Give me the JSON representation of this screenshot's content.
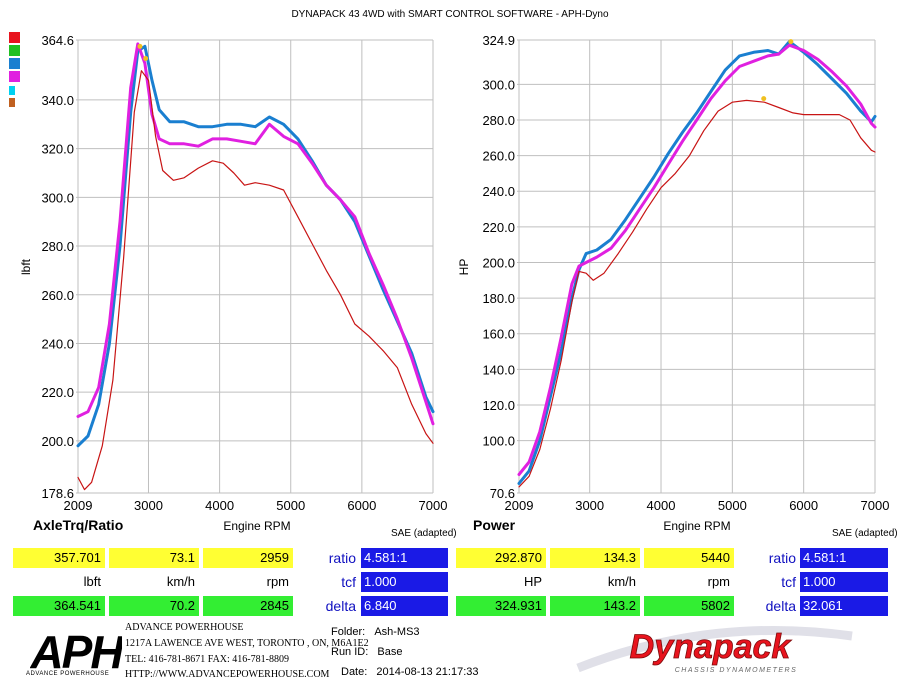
{
  "header": {
    "title": "DYNAPACK 43 4WD with SMART CONTROL SOFTWARE - APH-Dyno"
  },
  "legend_colors": [
    "#e8141e",
    "#20c020",
    "#1a7fd0",
    "#e020e0",
    "#00d0f0",
    "#c06020"
  ],
  "chart_data": [
    {
      "type": "line",
      "title": "AxleTrq/Ratio",
      "xlabel": "Engine RPM",
      "ylabel": "lbft",
      "system_label": "SAE (adapted)",
      "xlim": [
        2009,
        7000
      ],
      "ylim": [
        178.6,
        364.6
      ],
      "x_ticks": [
        "2009",
        "3000",
        "4000",
        "5000",
        "6000",
        "7000"
      ],
      "y_ticks": [
        "364.6",
        "340.0",
        "320.0",
        "300.0",
        "280.0",
        "260.0",
        "240.0",
        "220.0",
        "200.0",
        "178.6"
      ],
      "series": [
        {
          "color": "#1a7fd0",
          "points": [
            [
              2009,
              198
            ],
            [
              2150,
              202
            ],
            [
              2300,
              215
            ],
            [
              2450,
              240
            ],
            [
              2600,
              280
            ],
            [
              2750,
              335
            ],
            [
              2850,
              360
            ],
            [
              2950,
              362
            ],
            [
              3050,
              348
            ],
            [
              3150,
              336
            ],
            [
              3300,
              331
            ],
            [
              3500,
              331
            ],
            [
              3700,
              329
            ],
            [
              3900,
              329
            ],
            [
              4100,
              330
            ],
            [
              4300,
              330
            ],
            [
              4500,
              329
            ],
            [
              4700,
              333
            ],
            [
              4900,
              330
            ],
            [
              5100,
              324
            ],
            [
              5300,
              315
            ],
            [
              5500,
              305
            ],
            [
              5700,
              299
            ],
            [
              5900,
              290
            ],
            [
              6100,
              276
            ],
            [
              6300,
              262
            ],
            [
              6500,
              249
            ],
            [
              6700,
              236
            ],
            [
              6900,
              218
            ],
            [
              7000,
              212
            ]
          ]
        },
        {
          "color": "#e020e0",
          "points": [
            [
              2009,
              210
            ],
            [
              2150,
              212
            ],
            [
              2300,
              222
            ],
            [
              2450,
              248
            ],
            [
              2600,
              290
            ],
            [
              2750,
              345
            ],
            [
              2850,
              363
            ],
            [
              2950,
              355
            ],
            [
              3050,
              334
            ],
            [
              3150,
              324
            ],
            [
              3300,
              322
            ],
            [
              3500,
              322
            ],
            [
              3700,
              321
            ],
            [
              3900,
              324
            ],
            [
              4100,
              324
            ],
            [
              4300,
              323
            ],
            [
              4500,
              322
            ],
            [
              4700,
              330
            ],
            [
              4900,
              325
            ],
            [
              5100,
              322
            ],
            [
              5300,
              314
            ],
            [
              5500,
              305
            ],
            [
              5700,
              299
            ],
            [
              5900,
              292
            ],
            [
              6100,
              277
            ],
            [
              6300,
              264
            ],
            [
              6500,
              250
            ],
            [
              6700,
              234
            ],
            [
              6900,
              216
            ],
            [
              7000,
              207
            ]
          ]
        },
        {
          "color": "#c81414",
          "points": [
            [
              2009,
              185
            ],
            [
              2100,
              180
            ],
            [
              2200,
              183
            ],
            [
              2350,
              198
            ],
            [
              2500,
              225
            ],
            [
              2650,
              275
            ],
            [
              2800,
              335
            ],
            [
              2900,
              352
            ],
            [
              3000,
              348
            ],
            [
              3100,
              325
            ],
            [
              3200,
              311
            ],
            [
              3350,
              307
            ],
            [
              3500,
              308
            ],
            [
              3700,
              312
            ],
            [
              3900,
              315
            ],
            [
              4050,
              314
            ],
            [
              4200,
              310
            ],
            [
              4350,
              305
            ],
            [
              4500,
              306
            ],
            [
              4700,
              305
            ],
            [
              4900,
              303
            ],
            [
              5100,
              292
            ],
            [
              5300,
              281
            ],
            [
              5500,
              270
            ],
            [
              5700,
              260
            ],
            [
              5900,
              248
            ],
            [
              6100,
              243
            ],
            [
              6300,
              237
            ],
            [
              6500,
              230
            ],
            [
              6700,
              215
            ],
            [
              6900,
              203
            ],
            [
              7000,
              199
            ]
          ]
        }
      ],
      "peak_markers": [
        [
          2880,
          362
        ],
        [
          2960,
          357
        ]
      ]
    },
    {
      "type": "line",
      "title": "Power",
      "xlabel": "Engine RPM",
      "ylabel": "HP",
      "system_label": "SAE (adapted)",
      "xlim": [
        2009,
        7000
      ],
      "ylim": [
        70.6,
        324.9
      ],
      "x_ticks": [
        "2009",
        "3000",
        "4000",
        "5000",
        "6000",
        "7000"
      ],
      "y_ticks": [
        "324.9",
        "300.0",
        "280.0",
        "260.0",
        "240.0",
        "220.0",
        "200.0",
        "180.0",
        "160.0",
        "140.0",
        "120.0",
        "100.0",
        "70.6"
      ],
      "series": [
        {
          "color": "#1a7fd0",
          "points": [
            [
              2009,
              76
            ],
            [
              2150,
              83
            ],
            [
              2300,
              100
            ],
            [
              2450,
              125
            ],
            [
              2600,
              150
            ],
            [
              2750,
              180
            ],
            [
              2850,
              196
            ],
            [
              2950,
              205
            ],
            [
              3100,
              207
            ],
            [
              3300,
              213
            ],
            [
              3500,
              224
            ],
            [
              3700,
              236
            ],
            [
              3900,
              248
            ],
            [
              4100,
              261
            ],
            [
              4300,
              273
            ],
            [
              4500,
              284
            ],
            [
              4700,
              296
            ],
            [
              4900,
              308
            ],
            [
              5100,
              316
            ],
            [
              5300,
              318
            ],
            [
              5500,
              319
            ],
            [
              5650,
              317
            ],
            [
              5800,
              324
            ],
            [
              6000,
              318
            ],
            [
              6200,
              311
            ],
            [
              6400,
              303
            ],
            [
              6600,
              295
            ],
            [
              6800,
              285
            ],
            [
              6950,
              279
            ],
            [
              7000,
              282
            ]
          ]
        },
        {
          "color": "#e020e0",
          "points": [
            [
              2009,
              81
            ],
            [
              2150,
              88
            ],
            [
              2300,
              105
            ],
            [
              2450,
              130
            ],
            [
              2600,
              158
            ],
            [
              2750,
              188
            ],
            [
              2850,
              198
            ],
            [
              2950,
              200
            ],
            [
              3100,
              203
            ],
            [
              3300,
              208
            ],
            [
              3500,
              218
            ],
            [
              3700,
              230
            ],
            [
              3900,
              242
            ],
            [
              4100,
              255
            ],
            [
              4300,
              268
            ],
            [
              4500,
              280
            ],
            [
              4700,
              292
            ],
            [
              4900,
              302
            ],
            [
              5100,
              310
            ],
            [
              5300,
              313
            ],
            [
              5500,
              316
            ],
            [
              5650,
              317
            ],
            [
              5800,
              322
            ],
            [
              6000,
              319
            ],
            [
              6200,
              314
            ],
            [
              6400,
              307
            ],
            [
              6600,
              299
            ],
            [
              6800,
              289
            ],
            [
              6950,
              278
            ],
            [
              7000,
              276
            ]
          ]
        },
        {
          "color": "#c81414",
          "points": [
            [
              2009,
              74
            ],
            [
              2150,
              80
            ],
            [
              2300,
              95
            ],
            [
              2450,
              118
            ],
            [
              2600,
              145
            ],
            [
              2750,
              178
            ],
            [
              2850,
              195
            ],
            [
              2950,
              194
            ],
            [
              3050,
              190
            ],
            [
              3200,
              194
            ],
            [
              3400,
              205
            ],
            [
              3600,
              217
            ],
            [
              3800,
              230
            ],
            [
              4000,
              242
            ],
            [
              4200,
              250
            ],
            [
              4400,
              260
            ],
            [
              4600,
              274
            ],
            [
              4800,
              285
            ],
            [
              5000,
              290
            ],
            [
              5200,
              291
            ],
            [
              5450,
              290
            ],
            [
              5650,
              287
            ],
            [
              5850,
              284
            ],
            [
              6000,
              283
            ],
            [
              6150,
              283
            ],
            [
              6400,
              283
            ],
            [
              6500,
              283
            ],
            [
              6650,
              280
            ],
            [
              6800,
              270
            ],
            [
              6950,
              263
            ],
            [
              7000,
              262
            ]
          ]
        }
      ],
      "peak_markers": [
        [
          5820,
          324
        ],
        [
          5440,
          292
        ]
      ]
    }
  ],
  "readouts": {
    "left": {
      "row1": [
        "357.701",
        "73.1",
        "2959"
      ],
      "units": [
        "lbft",
        "km/h",
        "rpm"
      ],
      "row2": [
        "364.541",
        "70.2",
        "2845"
      ],
      "params": [
        {
          "label": "ratio",
          "value": "4.581:1"
        },
        {
          "label": "tcf",
          "value": "1.000"
        },
        {
          "label": "delta",
          "value": "6.840"
        }
      ]
    },
    "right": {
      "row1": [
        "292.870",
        "134.3",
        "5440"
      ],
      "units": [
        "HP",
        "km/h",
        "rpm"
      ],
      "row2": [
        "324.931",
        "143.2",
        "5802"
      ],
      "params": [
        {
          "label": "ratio",
          "value": "4.581:1"
        },
        {
          "label": "tcf",
          "value": "1.000"
        },
        {
          "label": "delta",
          "value": "32.061"
        }
      ]
    }
  },
  "footer": {
    "aph_logo": "APH",
    "aph_sub": "ADVANCE POWERHOUSE",
    "company": "ADVANCE POWERHOUSE",
    "address": "1217A LAWENCE AVE WEST, TORONTO , ON, M6A1E2",
    "phone": "TEL: 416-781-8671   FAX: 416-781-8809",
    "web": "HTTP://WWW.ADVANCEPOWERHOUSE.COM",
    "folder_label": "Folder:",
    "folder_value": "Ash-MS3",
    "runid_label": "Run ID:",
    "runid_value": "Base",
    "date_label": "Date:",
    "date_value": "2014-08-13 21:17:33",
    "dynapack_logo": "Dynapack",
    "dynapack_sub": "CHASSIS DYNAMOMETERS"
  }
}
